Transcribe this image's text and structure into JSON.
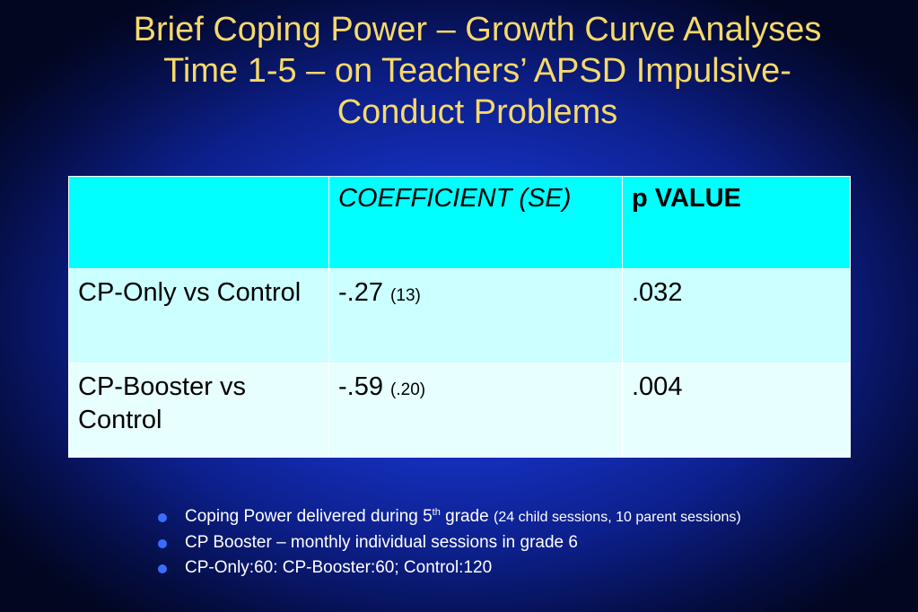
{
  "title": {
    "line1": "Brief Coping Power – Growth Curve Analyses",
    "line2": "Time 1-5 – on Teachers’ APSD Impulsive-",
    "line3": "Conduct Problems"
  },
  "table": {
    "headers": [
      "",
      "COEFFICIENT (SE)",
      "p VALUE"
    ],
    "rows": [
      {
        "label": "CP-Only vs Control",
        "coefficient": "-.27",
        "se": "(13)",
        "p": ".032"
      },
      {
        "label": "CP-Booster vs Control",
        "coefficient": "-.59",
        "se": "(.20)",
        "p": ".004"
      }
    ]
  },
  "notes": [
    {
      "text": "Coping Power delivered during 5",
      "sup": "th",
      "text2": " grade ",
      "small": "(24 child sessions, 10 parent sessions)"
    },
    {
      "text": "CP Booster – monthly individual sessions in grade 6"
    },
    {
      "text": "CP-Only:60: CP-Booster:60; Control:120"
    }
  ],
  "colors": {
    "title": "#f6d96a",
    "header_bg": "#00ffff",
    "row_bg": "#ccffff",
    "header_text": "#1230b0",
    "bullet": "#3a6dff"
  }
}
